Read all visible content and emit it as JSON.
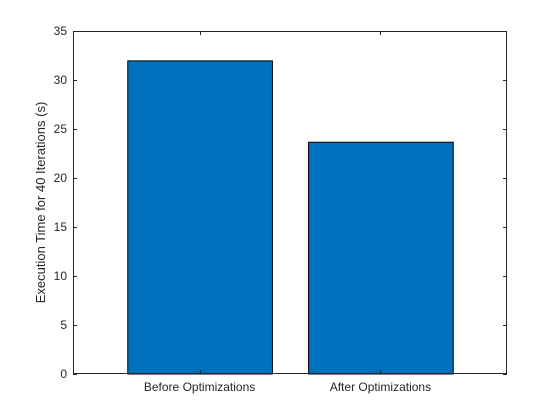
{
  "chart_data": {
    "type": "bar",
    "categories": [
      "Before Optimizations",
      "After Optimizations"
    ],
    "values": [
      32,
      23.7
    ],
    "xlim": [
      0.3,
      2.7
    ],
    "ylim": [
      0,
      35
    ],
    "yticks": [
      0,
      5,
      10,
      15,
      20,
      25,
      30,
      35
    ],
    "xlabel": "",
    "ylabel": "Execution Time for 40 Iterations (s)",
    "title": "",
    "grid": false,
    "legend": "none",
    "colors": {
      "bar_fill": "#0072bd",
      "bar_edge": "#000000",
      "axes": "#262626",
      "background": "#ffffff"
    }
  }
}
